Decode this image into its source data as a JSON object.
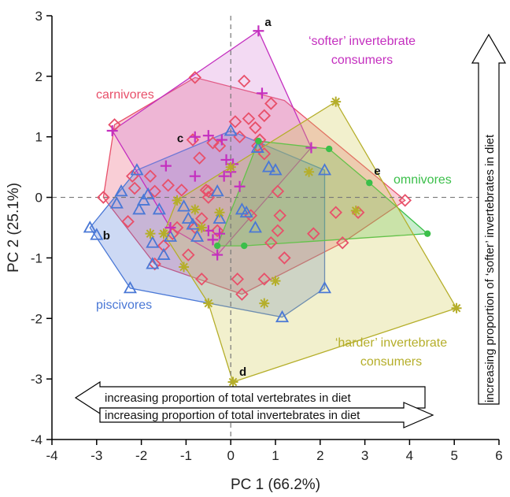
{
  "chart_data": {
    "type": "scatter",
    "title": "",
    "xlabel": "PC 1 (66.2%)",
    "ylabel": "PC 2 (25.1%)",
    "xlim": [
      -4,
      6
    ],
    "ylim": [
      -4,
      3
    ],
    "xticks": [
      "-4",
      "-3",
      "-2",
      "-1",
      "0",
      "1",
      "2",
      "3",
      "4",
      "5",
      "6"
    ],
    "yticks": [
      "-4",
      "-3",
      "-2",
      "-1",
      "0",
      "1",
      "2",
      "3"
    ],
    "reference_lines": {
      "x": 0,
      "y": 0
    },
    "series": [
      {
        "name": "carnivores",
        "label_lines": [
          "carnivores"
        ],
        "color": "#e8506a",
        "fill": "#e8506a",
        "marker": "diamond",
        "hull": [
          [
            -2.85,
            0.0
          ],
          [
            -2.6,
            1.2
          ],
          [
            -0.8,
            1.98
          ],
          [
            1.2,
            1.6
          ],
          [
            3.9,
            -0.05
          ],
          [
            2.5,
            -0.75
          ],
          [
            0.25,
            -1.6
          ],
          [
            -1.7,
            -1.1
          ]
        ],
        "points": [
          [
            -2.85,
            0.0
          ],
          [
            -2.6,
            1.2
          ],
          [
            -0.8,
            1.98
          ],
          [
            0.3,
            1.92
          ],
          [
            0.9,
            1.55
          ],
          [
            0.75,
            1.35
          ],
          [
            -2.2,
            0.35
          ],
          [
            -2.15,
            0.15
          ],
          [
            -2.3,
            -0.4
          ],
          [
            -1.8,
            0.35
          ],
          [
            -1.7,
            0.1
          ],
          [
            -1.4,
            0.2
          ],
          [
            -1.1,
            0.12
          ],
          [
            -0.85,
            0.95
          ],
          [
            -0.5,
            0.1
          ],
          [
            -0.25,
            0.85
          ],
          [
            0.1,
            1.25
          ],
          [
            0.2,
            1.0
          ],
          [
            0.4,
            1.3
          ],
          [
            0.55,
            1.15
          ],
          [
            0.6,
            0.85
          ],
          [
            0.75,
            0.72
          ],
          [
            0.65,
            0.95
          ],
          [
            -0.4,
            0.9
          ],
          [
            -0.7,
            0.65
          ],
          [
            -1.2,
            -0.5
          ],
          [
            -1.3,
            -0.6
          ],
          [
            -1.5,
            -0.8
          ],
          [
            -1.7,
            -1.1
          ],
          [
            -0.95,
            -0.95
          ],
          [
            -0.65,
            -0.35
          ],
          [
            -0.8,
            -0.5
          ],
          [
            -0.5,
            0.0
          ],
          [
            -0.3,
            -0.55
          ],
          [
            0.15,
            -1.35
          ],
          [
            0.25,
            -1.6
          ],
          [
            -0.65,
            -1.35
          ],
          [
            0.45,
            -0.3
          ],
          [
            0.9,
            -0.75
          ],
          [
            1.2,
            -1.0
          ],
          [
            0.75,
            -1.35
          ],
          [
            1.1,
            -0.3
          ],
          [
            1.05,
            -0.55
          ],
          [
            1.05,
            0.1
          ],
          [
            1.85,
            -0.6
          ],
          [
            2.35,
            -0.25
          ],
          [
            2.5,
            -0.75
          ],
          [
            2.85,
            -0.25
          ],
          [
            3.9,
            -0.05
          ],
          [
            -0.55,
            0.12
          ]
        ]
      },
      {
        "name": "piscivores",
        "label_lines": [
          "piscivores"
        ],
        "color": "#4a78d6",
        "fill": "#4a78d6",
        "marker": "triangle",
        "hull": [
          [
            -3.15,
            -0.5
          ],
          [
            -2.1,
            0.45
          ],
          [
            0.0,
            1.1
          ],
          [
            2.1,
            0.45
          ],
          [
            2.1,
            -1.5
          ],
          [
            1.15,
            -1.98
          ],
          [
            -2.25,
            -1.5
          ]
        ],
        "points": [
          [
            -3.15,
            -0.5
          ],
          [
            -3.0,
            -0.62
          ],
          [
            -2.25,
            -1.5
          ],
          [
            -2.05,
            -0.2
          ],
          [
            -2.55,
            -0.1
          ],
          [
            -2.45,
            0.1
          ],
          [
            -2.1,
            0.45
          ],
          [
            -1.85,
            0.05
          ],
          [
            -1.95,
            -0.05
          ],
          [
            -1.6,
            -0.2
          ],
          [
            -1.75,
            -0.75
          ],
          [
            -1.75,
            -1.1
          ],
          [
            -1.5,
            -0.95
          ],
          [
            -1.35,
            -0.65
          ],
          [
            -1.05,
            -0.15
          ],
          [
            -0.95,
            -0.35
          ],
          [
            -0.85,
            -0.45
          ],
          [
            -0.75,
            -0.65
          ],
          [
            -0.25,
            -0.35
          ],
          [
            0.0,
            1.1
          ],
          [
            0.6,
            0.82
          ],
          [
            0.85,
            0.5
          ],
          [
            1.0,
            0.45
          ],
          [
            0.35,
            -0.25
          ],
          [
            0.55,
            -0.5
          ],
          [
            1.15,
            -1.98
          ],
          [
            2.1,
            0.45
          ],
          [
            2.1,
            -1.5
          ],
          [
            0.25,
            -0.2
          ],
          [
            -0.3,
            0.1
          ]
        ]
      },
      {
        "name": "'softer' invertebrate consumers",
        "label_lines": [
          "‘softer’ invertebrate",
          "consumers"
        ],
        "color": "#c42fbf",
        "fill": "#d47ad3",
        "marker": "plus",
        "hull": [
          [
            -2.65,
            1.1
          ],
          [
            0.62,
            2.75
          ],
          [
            1.8,
            0.82
          ],
          [
            -0.3,
            -0.95
          ],
          [
            -1.35,
            -0.5
          ]
        ],
        "points": [
          [
            -2.65,
            1.1
          ],
          [
            0.62,
            2.75
          ],
          [
            0.7,
            1.72
          ],
          [
            1.8,
            0.82
          ],
          [
            -1.45,
            0.52
          ],
          [
            -0.8,
            1.0
          ],
          [
            -0.5,
            1.02
          ],
          [
            -0.1,
            0.62
          ],
          [
            -0.2,
            0.95
          ],
          [
            0.0,
            0.42
          ],
          [
            0.2,
            0.18
          ],
          [
            -1.35,
            -0.5
          ],
          [
            -0.8,
            0.35
          ],
          [
            -0.3,
            -0.95
          ],
          [
            -0.4,
            -0.7
          ],
          [
            -0.5,
            -0.55
          ],
          [
            -0.25,
            -0.6
          ],
          [
            0.05,
            0.55
          ],
          [
            -0.15,
            0.35
          ]
        ]
      },
      {
        "name": "omnivores",
        "label_lines": [
          "omnivores"
        ],
        "color": "#3bbf4a",
        "fill": "#3bbf4a",
        "marker": "circle",
        "hull": [
          [
            -0.3,
            -0.8
          ],
          [
            0.62,
            0.93
          ],
          [
            2.2,
            0.8
          ],
          [
            3.1,
            0.24
          ],
          [
            4.4,
            -0.6
          ],
          [
            0.3,
            -0.8
          ]
        ],
        "points": [
          [
            0.62,
            0.93
          ],
          [
            2.2,
            0.8
          ],
          [
            3.1,
            0.24
          ],
          [
            4.4,
            -0.6
          ],
          [
            0.3,
            -0.8
          ],
          [
            -0.3,
            -0.8
          ]
        ]
      },
      {
        "name": "'harder' invertebrate consumers",
        "label_lines": [
          "‘harder’ invertebrate",
          "consumers"
        ],
        "color": "#b5ae2a",
        "fill": "#cfc84a",
        "marker": "asterisk",
        "hull": [
          [
            -1.5,
            -0.6
          ],
          [
            -1.2,
            -0.05
          ],
          [
            2.35,
            1.58
          ],
          [
            5.05,
            -1.83
          ],
          [
            0.05,
            -3.05
          ],
          [
            -0.5,
            -1.75
          ]
        ],
        "points": [
          [
            -1.5,
            -0.6
          ],
          [
            -1.2,
            -0.05
          ],
          [
            2.35,
            1.58
          ],
          [
            5.05,
            -1.83
          ],
          [
            0.05,
            -3.05
          ],
          [
            -0.5,
            -1.75
          ],
          [
            -0.8,
            -0.2
          ],
          [
            -0.65,
            -0.5
          ],
          [
            -1.05,
            -1.15
          ],
          [
            0.0,
            0.5
          ],
          [
            -0.25,
            -0.25
          ],
          [
            0.75,
            -1.75
          ],
          [
            1.0,
            -1.38
          ],
          [
            1.75,
            0.42
          ],
          [
            2.8,
            -0.22
          ],
          [
            -1.8,
            -0.6
          ]
        ]
      }
    ],
    "point_labels": [
      {
        "text": "a",
        "x": 0.62,
        "y": 2.75
      },
      {
        "text": "b",
        "x": -3.0,
        "y": -0.62
      },
      {
        "text": "c",
        "x": -0.85,
        "y": 0.98
      },
      {
        "text": "d",
        "x": 0.05,
        "y": -3.05
      },
      {
        "text": "e",
        "x": 3.1,
        "y": 0.24
      }
    ],
    "annotations": {
      "x_arrow_lines": [
        "increasing proportion of total vertebrates in diet",
        "increasing proportion of total invertebrates in diet"
      ],
      "y_arrow_text": "increasing proportion of ‘softer’ invertebrates in diet"
    }
  }
}
